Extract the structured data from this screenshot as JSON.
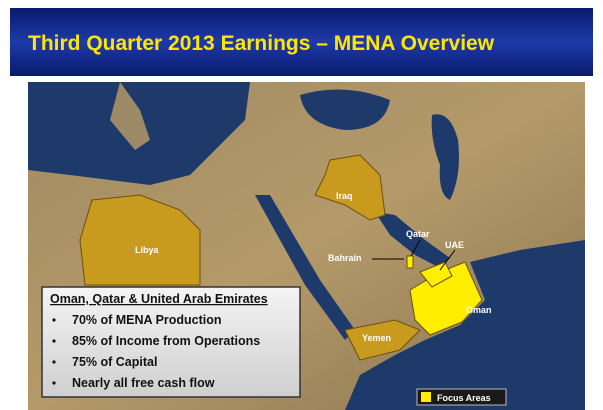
{
  "header": {
    "title": "Third Quarter 2013 Earnings – MENA Overview"
  },
  "map": {
    "labels": [
      "Iraq",
      "Libya",
      "Qatar",
      "UAE",
      "Bahrain",
      "Oman",
      "Yemen"
    ]
  },
  "info_box": {
    "title": "Oman, Qatar & United Arab Emirates",
    "bullets": [
      "70% of MENA Production",
      "85% of Income from Operations",
      "75% of Capital",
      "Nearly all free cash flow"
    ]
  },
  "legend": {
    "label": "Focus Areas"
  }
}
